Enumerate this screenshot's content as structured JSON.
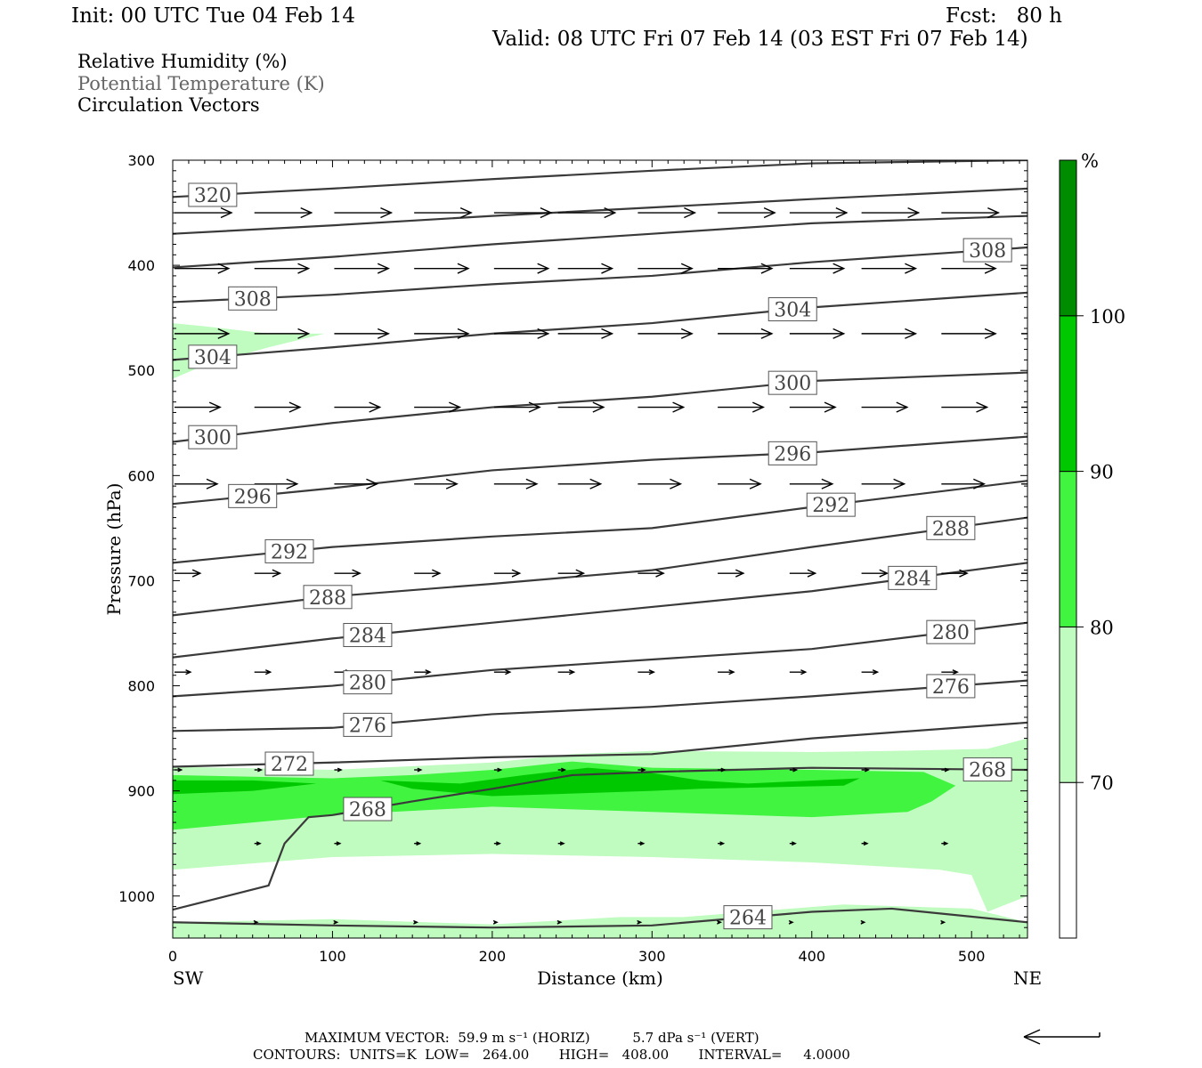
{
  "header": {
    "init": "Init: 00 UTC Tue 04 Feb 14",
    "fcst": "Fcst:   80 h",
    "valid": "Valid: 08 UTC Fri 07 Feb 14 (03 EST Fri 07 Feb 14)"
  },
  "legend": {
    "rh": "Relative Humidity (%)",
    "theta": "Potential Temperature (K)",
    "vectors": "Circulation Vectors"
  },
  "footer": {
    "max_vector": "MAXIMUM VECTOR:  59.9 m s⁻¹ (HORIZ)          5.7 dPa s⁻¹ (VERT)",
    "contours": "CONTOURS:  UNITS=K  LOW=   264.00       HIGH=   408.00       INTERVAL=     4.0000"
  },
  "colorbar": {
    "unit": "%",
    "levels": [
      70,
      80,
      90,
      100
    ],
    "colors": [
      "#ffffff",
      "#c0fcc0",
      "#40f440",
      "#00c800",
      "#008c00"
    ]
  },
  "chart_data": {
    "type": "contour",
    "xlabel": "Distance (km)",
    "ylabel": "Pressure (hPa)",
    "xlim": [
      0,
      535
    ],
    "ylim": [
      1040,
      300
    ],
    "x_ticks": [
      0,
      100,
      200,
      300,
      400,
      500
    ],
    "y_ticks": [
      300,
      400,
      500,
      600,
      700,
      800,
      900,
      1000
    ],
    "x_end_labels": [
      "SW",
      "NE"
    ],
    "theta_contours": [
      {
        "value": 320,
        "label_x": 25,
        "points": [
          [
            0,
            335
          ],
          [
            100,
            327
          ],
          [
            200,
            318
          ],
          [
            300,
            310
          ],
          [
            400,
            303
          ],
          [
            535,
            300
          ]
        ]
      },
      {
        "value": 316,
        "points": [
          [
            0,
            370
          ],
          [
            100,
            362
          ],
          [
            200,
            353
          ],
          [
            300,
            345
          ],
          [
            400,
            337
          ],
          [
            535,
            327
          ]
        ]
      },
      {
        "value": 312,
        "points": [
          [
            0,
            402
          ],
          [
            100,
            392
          ],
          [
            200,
            380
          ],
          [
            300,
            370
          ],
          [
            400,
            360
          ],
          [
            535,
            353
          ]
        ]
      },
      {
        "value": 308,
        "label_x": 50,
        "label_x2": 510,
        "points": [
          [
            0,
            435
          ],
          [
            100,
            428
          ],
          [
            200,
            418
          ],
          [
            300,
            410
          ],
          [
            400,
            397
          ],
          [
            535,
            383
          ]
        ]
      },
      {
        "value": 304,
        "label_x": 25,
        "label_x2": 388,
        "points": [
          [
            0,
            490
          ],
          [
            100,
            478
          ],
          [
            200,
            465
          ],
          [
            300,
            455
          ],
          [
            400,
            440
          ],
          [
            535,
            426
          ]
        ]
      },
      {
        "value": 300,
        "label_x": 25,
        "label_x2": 388,
        "points": [
          [
            0,
            568
          ],
          [
            100,
            550
          ],
          [
            200,
            535
          ],
          [
            300,
            525
          ],
          [
            400,
            510
          ],
          [
            535,
            502
          ]
        ]
      },
      {
        "value": 296,
        "label_x": 50,
        "label_x2": 388,
        "points": [
          [
            0,
            627
          ],
          [
            100,
            612
          ],
          [
            200,
            595
          ],
          [
            300,
            585
          ],
          [
            400,
            578
          ],
          [
            535,
            563
          ]
        ]
      },
      {
        "value": 292,
        "label_x": 73,
        "label_x2": 412,
        "points": [
          [
            0,
            683
          ],
          [
            100,
            668
          ],
          [
            200,
            658
          ],
          [
            300,
            650
          ],
          [
            400,
            630
          ],
          [
            535,
            605
          ]
        ]
      },
      {
        "value": 288,
        "label_x": 97,
        "label_x2": 487,
        "points": [
          [
            0,
            733
          ],
          [
            100,
            715
          ],
          [
            200,
            703
          ],
          [
            300,
            690
          ],
          [
            400,
            668
          ],
          [
            535,
            640
          ]
        ]
      },
      {
        "value": 284,
        "label_x": 122,
        "label_x2": 463,
        "points": [
          [
            0,
            773
          ],
          [
            100,
            755
          ],
          [
            200,
            740
          ],
          [
            300,
            725
          ],
          [
            400,
            710
          ],
          [
            535,
            683
          ]
        ]
      },
      {
        "value": 280,
        "label_x": 122,
        "label_x2": 487,
        "points": [
          [
            0,
            810
          ],
          [
            100,
            800
          ],
          [
            200,
            785
          ],
          [
            300,
            775
          ],
          [
            400,
            765
          ],
          [
            535,
            740
          ]
        ]
      },
      {
        "value": 276,
        "label_x": 122,
        "label_x2": 487,
        "points": [
          [
            0,
            843
          ],
          [
            100,
            840
          ],
          [
            200,
            827
          ],
          [
            300,
            820
          ],
          [
            400,
            810
          ],
          [
            535,
            795
          ]
        ]
      },
      {
        "value": 272,
        "label_x": 73,
        "points": [
          [
            0,
            877
          ],
          [
            100,
            873
          ],
          [
            200,
            868
          ],
          [
            300,
            865
          ],
          [
            400,
            850
          ],
          [
            535,
            835
          ]
        ]
      },
      {
        "value": 268,
        "label_x": 122,
        "label_x2": 510,
        "points": [
          [
            0,
            1013
          ],
          [
            60,
            990
          ],
          [
            70,
            950
          ],
          [
            85,
            925
          ],
          [
            100,
            923
          ],
          [
            150,
            910
          ],
          [
            200,
            898
          ],
          [
            250,
            885
          ],
          [
            300,
            882
          ],
          [
            400,
            878
          ],
          [
            535,
            880
          ]
        ]
      },
      {
        "value": 264,
        "label_x": 360,
        "points": [
          [
            0,
            1025
          ],
          [
            100,
            1028
          ],
          [
            200,
            1030
          ],
          [
            300,
            1028
          ],
          [
            400,
            1015
          ],
          [
            450,
            1012
          ],
          [
            535,
            1025
          ]
        ]
      }
    ],
    "rh_regions": [
      {
        "level": 70,
        "points": [
          [
            0,
            455
          ],
          [
            20,
            458
          ],
          [
            60,
            465
          ],
          [
            95,
            465
          ],
          [
            60,
            478
          ],
          [
            20,
            495
          ],
          [
            0,
            508
          ]
        ]
      },
      {
        "level": 70,
        "points": [
          [
            0,
            877
          ],
          [
            100,
            880
          ],
          [
            200,
            873
          ],
          [
            250,
            865
          ],
          [
            300,
            862
          ],
          [
            400,
            863
          ],
          [
            450,
            862
          ],
          [
            510,
            860
          ],
          [
            535,
            850
          ],
          [
            535,
            1000
          ],
          [
            510,
            1015
          ],
          [
            500,
            980
          ],
          [
            480,
            975
          ],
          [
            400,
            968
          ],
          [
            300,
            963
          ],
          [
            200,
            960
          ],
          [
            100,
            963
          ],
          [
            0,
            975
          ]
        ]
      },
      {
        "level": 80,
        "points": [
          [
            0,
            885
          ],
          [
            100,
            888
          ],
          [
            150,
            885
          ],
          [
            200,
            880
          ],
          [
            250,
            872
          ],
          [
            300,
            878
          ],
          [
            400,
            880
          ],
          [
            470,
            882
          ],
          [
            490,
            895
          ],
          [
            475,
            910
          ],
          [
            460,
            920
          ],
          [
            400,
            925
          ],
          [
            300,
            920
          ],
          [
            200,
            915
          ],
          [
            100,
            923
          ],
          [
            0,
            937
          ]
        ]
      },
      {
        "level": 90,
        "points": [
          [
            0,
            890
          ],
          [
            50,
            890
          ],
          [
            90,
            893
          ],
          [
            50,
            900
          ],
          [
            0,
            903
          ]
        ]
      },
      {
        "level": 90,
        "points": [
          [
            130,
            890
          ],
          [
            180,
            893
          ],
          [
            220,
            885
          ],
          [
            260,
            878
          ],
          [
            300,
            883
          ],
          [
            330,
            890
          ],
          [
            360,
            893
          ],
          [
            430,
            888
          ],
          [
            420,
            895
          ],
          [
            330,
            898
          ],
          [
            300,
            900
          ],
          [
            200,
            905
          ],
          [
            150,
            898
          ]
        ]
      },
      {
        "level": 70,
        "points": [
          [
            0,
            1025
          ],
          [
            100,
            1022
          ],
          [
            200,
            1027
          ],
          [
            280,
            1020
          ],
          [
            320,
            1020
          ],
          [
            420,
            1008
          ],
          [
            500,
            1012
          ],
          [
            535,
            1025
          ],
          [
            535,
            1040
          ],
          [
            0,
            1040
          ]
        ]
      }
    ],
    "vectors": [
      {
        "p": 350,
        "xs": [
          0,
          50,
          100,
          150,
          200,
          240,
          290,
          340,
          385,
          430,
          480,
          530
        ],
        "u": 1.0
      },
      {
        "p": 403,
        "xs": [
          0,
          50,
          100,
          150,
          200,
          240,
          290,
          340,
          385,
          430,
          480,
          530
        ],
        "u": 0.95
      },
      {
        "p": 465,
        "xs": [
          0,
          50,
          100,
          150,
          200,
          240,
          290,
          340,
          385,
          430,
          480,
          530
        ],
        "u": 0.95
      },
      {
        "p": 535,
        "xs": [
          0,
          50,
          100,
          150,
          200,
          240,
          290,
          340,
          385,
          430,
          480,
          530
        ],
        "u": 0.8
      },
      {
        "p": 608,
        "xs": [
          0,
          50,
          100,
          150,
          200,
          240,
          290,
          340,
          385,
          430,
          480,
          530
        ],
        "u": 0.75
      },
      {
        "p": 693,
        "xs": [
          0,
          50,
          100,
          150,
          200,
          240,
          290,
          340,
          385,
          430,
          480,
          530
        ],
        "u": 0.45
      },
      {
        "p": 787,
        "xs": [
          0,
          50,
          100,
          150,
          200,
          240,
          290,
          340,
          385,
          430,
          480,
          530
        ],
        "u": 0.28
      },
      {
        "p": 880,
        "xs": [
          0,
          50,
          100,
          150,
          200,
          240,
          290,
          340,
          385,
          430,
          480
        ],
        "u": 0.12
      },
      {
        "p": 950,
        "xs": [
          50,
          100,
          150,
          200,
          240,
          290,
          340,
          385,
          430,
          480
        ],
        "u": 0.1
      },
      {
        "p": 1025,
        "xs": [
          50,
          100,
          150,
          200,
          240,
          290,
          340,
          385,
          430,
          480
        ],
        "u": 0.05
      }
    ]
  }
}
